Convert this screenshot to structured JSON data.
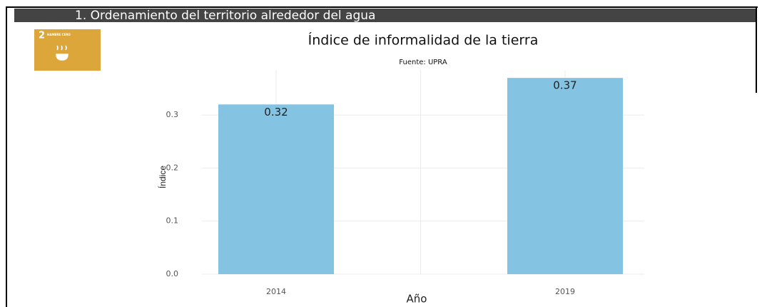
{
  "header": {
    "title": "1. Ordenamiento del territorio alrededor del agua",
    "icon_number": "2",
    "icon_text": "HAMBRE CERO"
  },
  "chart_data": {
    "type": "bar",
    "title": "Índice de informalidad de la tierra",
    "subtitle": "Fuente: UPRA",
    "x_label": "Año",
    "y_label": "Índice",
    "categories": [
      "2014",
      "2019"
    ],
    "values": [
      0.32,
      0.37
    ],
    "color": "#85c3e3",
    "ylim": [
      0,
      0.385
    ],
    "yticks": [
      {
        "value": 0,
        "label": "0.0"
      },
      0.1,
      0.2,
      0.3
    ],
    "grid": true
  }
}
